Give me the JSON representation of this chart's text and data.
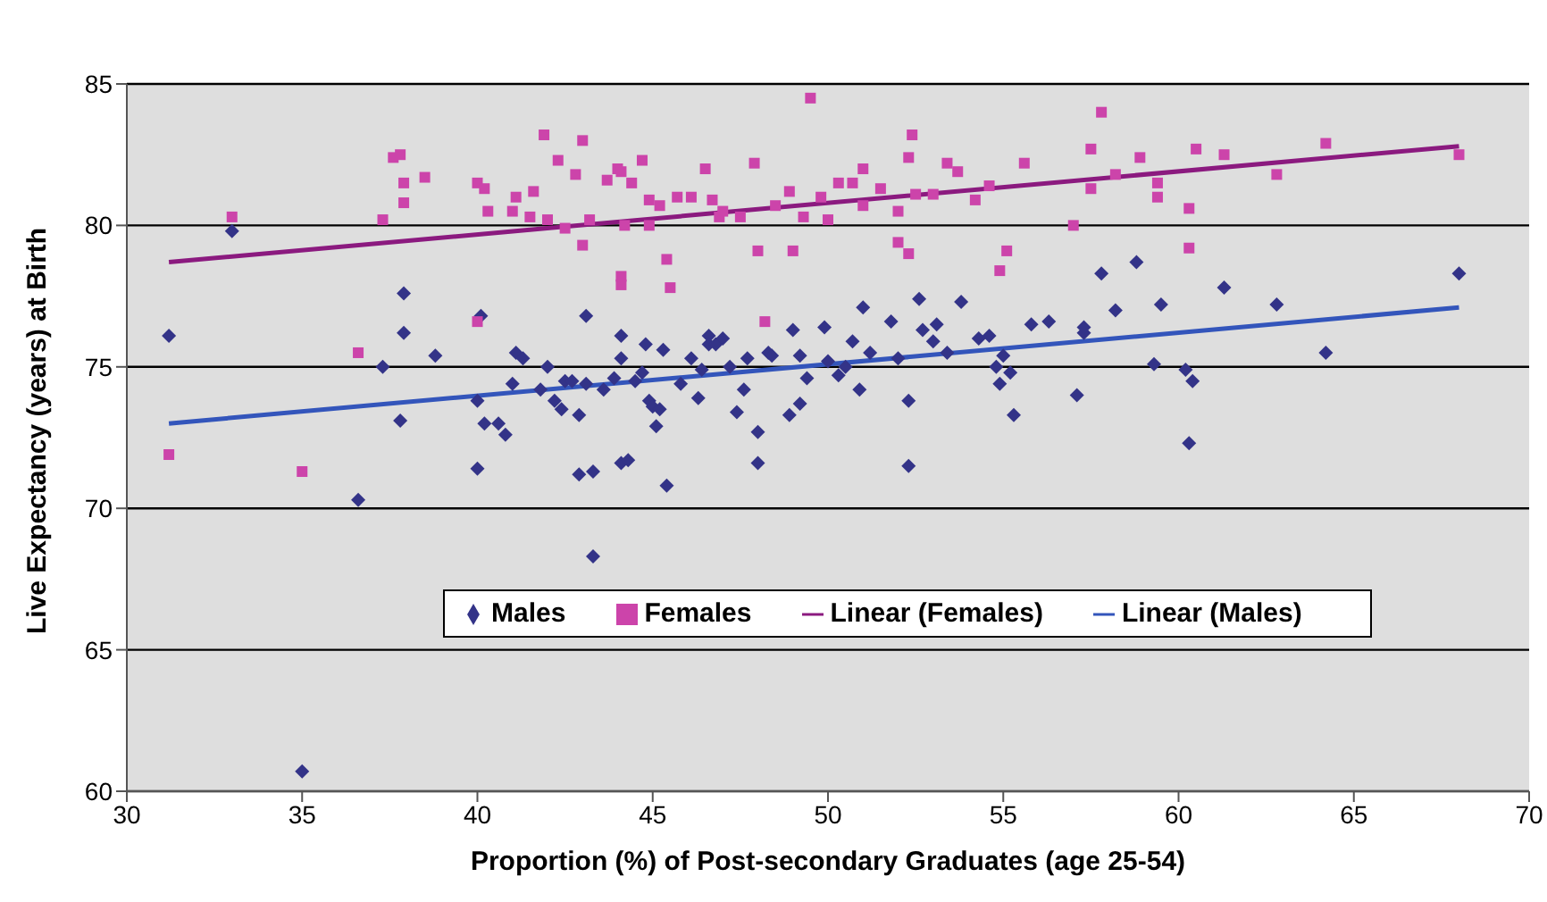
{
  "chart_data": {
    "type": "scatter",
    "xlabel": "Proportion (%) of Post-secondary Graduates (age 25-54)",
    "ylabel": "Live Expectancy (years) at Birth",
    "xlim": [
      30,
      70
    ],
    "xticks": [
      30,
      35,
      40,
      45,
      50,
      55,
      60,
      65,
      70
    ],
    "ylim": [
      60,
      85
    ],
    "yticks": [
      60,
      65,
      70,
      75,
      80,
      85
    ],
    "grid": "y",
    "legend": "bottom right",
    "series": [
      {
        "name": "Males",
        "type": "scatter",
        "marker": "diamond",
        "color": "#333388",
        "x": [
          31.2,
          33.0,
          35.0,
          36.6,
          37.3,
          37.9,
          37.9,
          37.8,
          38.8,
          40.0,
          40.0,
          40.1,
          40.2,
          40.6,
          40.8,
          41.1,
          41.0,
          41.3,
          41.8,
          42.0,
          42.2,
          42.4,
          42.5,
          42.7,
          42.9,
          42.9,
          43.1,
          43.1,
          43.3,
          43.3,
          43.6,
          43.9,
          44.1,
          44.1,
          44.1,
          44.3,
          44.5,
          44.7,
          44.8,
          44.9,
          45.0,
          45.2,
          45.3,
          45.4,
          45.1,
          45.8,
          46.1,
          46.3,
          46.4,
          46.6,
          46.6,
          46.8,
          47.0,
          47.2,
          47.4,
          47.6,
          47.7,
          48.0,
          48.0,
          48.3,
          48.4,
          48.9,
          49.0,
          49.2,
          49.2,
          49.4,
          49.9,
          50.0,
          50.3,
          50.5,
          50.7,
          50.9,
          51.0,
          51.2,
          51.8,
          52.0,
          52.3,
          52.3,
          52.6,
          52.7,
          53.0,
          53.1,
          53.4,
          53.8,
          54.3,
          54.6,
          54.8,
          54.9,
          55.0,
          55.2,
          55.3,
          55.8,
          56.3,
          57.1,
          57.3,
          57.3,
          57.8,
          58.2,
          58.8,
          59.3,
          59.5,
          60.2,
          60.3,
          60.4,
          61.3,
          62.8,
          64.2,
          68.0
        ],
        "values": [
          76.1,
          79.8,
          60.7,
          70.3,
          75.0,
          77.6,
          76.2,
          73.1,
          75.4,
          73.8,
          71.4,
          76.8,
          73.0,
          73.0,
          72.6,
          75.5,
          74.4,
          75.3,
          74.2,
          75.0,
          73.8,
          73.5,
          74.5,
          74.5,
          73.3,
          71.2,
          74.4,
          76.8,
          71.3,
          68.3,
          74.2,
          74.6,
          75.3,
          76.1,
          71.6,
          71.7,
          74.5,
          74.8,
          75.8,
          73.8,
          73.6,
          73.5,
          75.6,
          70.8,
          72.9,
          74.4,
          75.3,
          73.9,
          74.9,
          76.1,
          75.8,
          75.8,
          76.0,
          75.0,
          73.4,
          74.2,
          75.3,
          72.7,
          71.6,
          75.5,
          75.4,
          73.3,
          76.3,
          75.4,
          73.7,
          74.6,
          76.4,
          75.2,
          74.7,
          75.0,
          75.9,
          74.2,
          77.1,
          75.5,
          76.6,
          75.3,
          73.8,
          71.5,
          77.4,
          76.3,
          75.9,
          76.5,
          75.5,
          77.3,
          76.0,
          76.1,
          75.0,
          74.4,
          75.4,
          74.8,
          73.3,
          76.5,
          76.6,
          74.0,
          76.2,
          76.4,
          78.3,
          77.0,
          78.7,
          75.1,
          77.2,
          74.9,
          72.3,
          74.5,
          77.8,
          77.2,
          75.5,
          78.3
        ]
      },
      {
        "name": "Females",
        "type": "scatter",
        "marker": "square",
        "color": "#cc44aa",
        "x": [
          31.2,
          33.0,
          35.0,
          36.6,
          37.3,
          37.6,
          37.8,
          37.9,
          37.9,
          38.5,
          40.0,
          40.2,
          40.0,
          40.3,
          41.0,
          41.1,
          41.5,
          41.6,
          41.9,
          42.0,
          42.3,
          42.5,
          42.8,
          43.0,
          43.0,
          43.2,
          43.7,
          44.0,
          44.1,
          44.2,
          44.1,
          44.1,
          44.4,
          44.7,
          44.9,
          44.9,
          45.2,
          45.4,
          45.5,
          45.7,
          46.1,
          46.5,
          46.7,
          46.9,
          47.0,
          47.5,
          47.9,
          48.0,
          48.2,
          48.5,
          48.9,
          49.0,
          49.3,
          49.5,
          49.8,
          50.0,
          50.3,
          50.7,
          51.0,
          51.0,
          51.5,
          52.0,
          52.0,
          52.3,
          52.3,
          52.4,
          52.5,
          53.0,
          53.4,
          53.7,
          54.2,
          54.6,
          54.9,
          55.1,
          55.6,
          57.0,
          57.5,
          57.5,
          57.8,
          58.2,
          58.9,
          59.4,
          59.4,
          60.3,
          60.3,
          60.5,
          61.3,
          62.8,
          64.2,
          68.0
        ],
        "values": [
          71.9,
          80.3,
          71.3,
          75.5,
          80.2,
          82.4,
          82.5,
          81.5,
          80.8,
          81.7,
          81.5,
          81.3,
          76.6,
          80.5,
          80.5,
          81.0,
          80.3,
          81.2,
          83.2,
          80.2,
          82.3,
          79.9,
          81.8,
          83.0,
          79.3,
          80.2,
          81.6,
          82.0,
          81.9,
          80.0,
          78.2,
          77.9,
          81.5,
          82.3,
          80.9,
          80.0,
          80.7,
          78.8,
          77.8,
          81.0,
          81.0,
          82.0,
          80.9,
          80.3,
          80.5,
          80.3,
          82.2,
          79.1,
          76.6,
          80.7,
          81.2,
          79.1,
          80.3,
          84.5,
          81.0,
          80.2,
          81.5,
          81.5,
          82.0,
          80.7,
          81.3,
          80.5,
          79.4,
          79.0,
          82.4,
          83.2,
          81.1,
          81.1,
          82.2,
          81.9,
          80.9,
          81.4,
          78.4,
          79.1,
          82.2,
          80.0,
          81.3,
          82.7,
          84.0,
          81.8,
          82.4,
          81.5,
          81.0,
          79.2,
          80.6,
          82.7,
          82.5,
          81.8,
          82.9,
          82.5
        ]
      },
      {
        "name": "Linear (Females)",
        "type": "line",
        "marker": "none",
        "color": "#8b1a7f",
        "x": [
          31.2,
          68.0
        ],
        "values": [
          78.7,
          82.8
        ]
      },
      {
        "name": "Linear (Males)",
        "type": "line",
        "marker": "none",
        "color": "#3355bb",
        "x": [
          31.2,
          68.0
        ],
        "values": [
          73.0,
          77.1
        ]
      }
    ]
  }
}
